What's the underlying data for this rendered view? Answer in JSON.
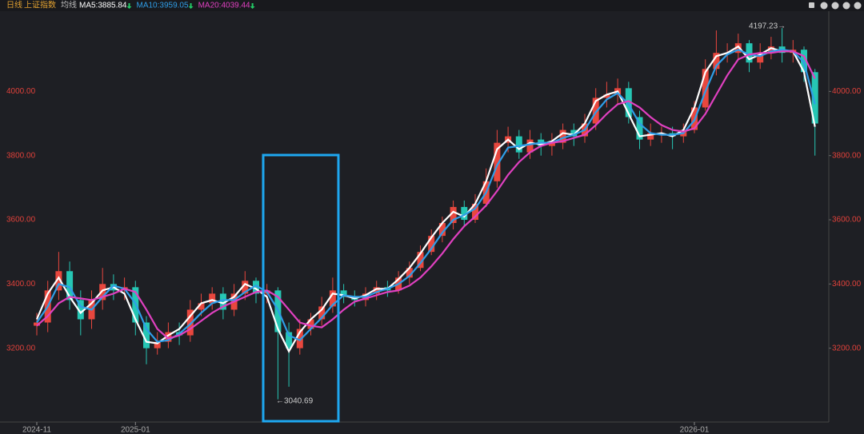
{
  "chart_data": {
    "type": "candlestick",
    "title": "日线",
    "subtitle": "上证指数",
    "ma_label": "均线",
    "up_color": "#e8473e",
    "down_color": "#26c6b4",
    "categories": [
      "2024-11",
      null,
      null,
      null,
      null,
      null,
      null,
      null,
      null,
      "2025-01",
      null,
      null,
      null,
      null,
      null,
      null,
      null,
      null,
      null,
      null,
      null,
      null,
      null,
      null,
      null,
      null,
      null,
      null,
      null,
      null,
      null,
      null,
      null,
      null,
      null,
      null,
      null,
      null,
      null,
      null,
      null,
      null,
      null,
      null,
      null,
      null,
      null,
      null,
      null,
      null,
      null,
      null,
      null,
      null,
      null,
      null,
      null,
      null,
      null,
      null,
      "2026-01",
      null,
      null,
      null,
      null,
      null,
      null,
      null,
      null,
      null,
      null,
      null
    ],
    "open": [
      3270,
      3280,
      3380,
      3440,
      3350,
      3290,
      3350,
      3400,
      3380,
      3390,
      3280,
      3200,
      3220,
      3250,
      3240,
      3320,
      3340,
      3370,
      3320,
      3370,
      3410,
      3370,
      3380,
      3250,
      3200,
      3260,
      3290,
      3330,
      3380,
      3360,
      3350,
      3370,
      3390,
      3380,
      3420,
      3450,
      3500,
      3550,
      3590,
      3640,
      3600,
      3650,
      3720,
      3840,
      3860,
      3810,
      3850,
      3830,
      3840,
      3880,
      3860,
      3900,
      3980,
      3990,
      4010,
      3920,
      3850,
      3870,
      3870,
      3860,
      3880,
      3950,
      4070,
      4120,
      4120,
      4150,
      4090,
      4120,
      4140,
      4120,
      4130,
      4060
    ],
    "high": [
      3310,
      3410,
      3500,
      3470,
      3380,
      3380,
      3450,
      3430,
      3420,
      3410,
      3300,
      3250,
      3280,
      3280,
      3350,
      3370,
      3390,
      3390,
      3400,
      3440,
      3420,
      3400,
      3390,
      3280,
      3290,
      3310,
      3360,
      3420,
      3400,
      3380,
      3390,
      3410,
      3410,
      3440,
      3470,
      3520,
      3570,
      3610,
      3660,
      3660,
      3680,
      3760,
      3880,
      3890,
      3880,
      3880,
      3870,
      3870,
      3900,
      3900,
      3930,
      4010,
      4030,
      4040,
      4030,
      3940,
      3900,
      3890,
      3890,
      3900,
      3970,
      4100,
      4190,
      4150,
      4180,
      4160,
      4150,
      4170,
      4197.23,
      4160,
      4140,
      4070
    ],
    "low": [
      3240,
      3250,
      3350,
      3320,
      3240,
      3260,
      3320,
      3350,
      3350,
      3240,
      3150,
      3180,
      3200,
      3210,
      3220,
      3300,
      3320,
      3290,
      3300,
      3350,
      3340,
      3340,
      3040.69,
      3080,
      3180,
      3240,
      3270,
      3310,
      3340,
      3330,
      3330,
      3350,
      3360,
      3370,
      3400,
      3440,
      3490,
      3530,
      3570,
      3580,
      3590,
      3640,
      3700,
      3810,
      3790,
      3790,
      3800,
      3800,
      3820,
      3830,
      3840,
      3880,
      3950,
      3960,
      3900,
      3820,
      3830,
      3840,
      3820,
      3840,
      3870,
      3940,
      4050,
      4090,
      4100,
      4060,
      4070,
      4100,
      4090,
      4090,
      4030,
      3800
    ],
    "close": [
      3280,
      3380,
      3440,
      3350,
      3290,
      3350,
      3400,
      3380,
      3390,
      3280,
      3200,
      3220,
      3250,
      3240,
      3320,
      3340,
      3370,
      3320,
      3370,
      3410,
      3370,
      3380,
      3250,
      3200,
      3260,
      3290,
      3330,
      3380,
      3360,
      3350,
      3370,
      3390,
      3380,
      3420,
      3450,
      3500,
      3550,
      3590,
      3640,
      3600,
      3650,
      3720,
      3840,
      3860,
      3810,
      3850,
      3830,
      3840,
      3880,
      3860,
      3900,
      3980,
      3990,
      4010,
      3920,
      3850,
      3870,
      3870,
      3860,
      3880,
      3950,
      4070,
      4120,
      4120,
      4150,
      4090,
      4120,
      4140,
      4120,
      4130,
      4060,
      3900
    ],
    "series": [
      {
        "name": "MA5:3885.84",
        "color": "#ffffff",
        "values": [
          3290,
          3370,
          3420,
          3360,
          3310,
          3340,
          3380,
          3390,
          3370,
          3290,
          3220,
          3215,
          3240,
          3260,
          3300,
          3340,
          3350,
          3340,
          3360,
          3400,
          3385,
          3360,
          3260,
          3190,
          3250,
          3290,
          3320,
          3370,
          3365,
          3355,
          3365,
          3385,
          3385,
          3415,
          3450,
          3495,
          3545,
          3590,
          3625,
          3610,
          3650,
          3720,
          3820,
          3850,
          3820,
          3840,
          3835,
          3845,
          3870,
          3865,
          3900,
          3970,
          3990,
          4000,
          3930,
          3860,
          3865,
          3870,
          3860,
          3880,
          3950,
          4060,
          4110,
          4120,
          4140,
          4100,
          4115,
          4135,
          4125,
          4125,
          4060,
          3890
        ]
      },
      {
        "name": "MA10:3959.05",
        "color": "#2f9ee8",
        "values": [
          3280,
          3330,
          3400,
          3390,
          3330,
          3320,
          3360,
          3395,
          3385,
          3340,
          3260,
          3220,
          3225,
          3245,
          3275,
          3310,
          3340,
          3350,
          3350,
          3375,
          3395,
          3375,
          3320,
          3240,
          3225,
          3260,
          3295,
          3335,
          3365,
          3360,
          3360,
          3375,
          3385,
          3400,
          3425,
          3465,
          3510,
          3560,
          3600,
          3615,
          3635,
          3685,
          3770,
          3825,
          3830,
          3835,
          3840,
          3840,
          3855,
          3865,
          3880,
          3935,
          3975,
          3995,
          3960,
          3900,
          3870,
          3865,
          3865,
          3870,
          3910,
          4000,
          4080,
          4115,
          4130,
          4115,
          4110,
          4125,
          4130,
          4125,
          4090,
          3960
        ]
      },
      {
        "name": "MA20:4039.44",
        "color": "#e040c0",
        "values": [
          3270,
          3300,
          3340,
          3360,
          3355,
          3350,
          3360,
          3370,
          3385,
          3375,
          3320,
          3260,
          3230,
          3240,
          3260,
          3285,
          3310,
          3330,
          3345,
          3360,
          3375,
          3380,
          3360,
          3320,
          3280,
          3270,
          3265,
          3290,
          3320,
          3345,
          3355,
          3365,
          3375,
          3380,
          3395,
          3420,
          3455,
          3495,
          3540,
          3580,
          3610,
          3645,
          3690,
          3740,
          3780,
          3810,
          3830,
          3840,
          3845,
          3855,
          3865,
          3895,
          3930,
          3960,
          3970,
          3950,
          3920,
          3895,
          3880,
          3875,
          3885,
          3930,
          3990,
          4050,
          4100,
          4115,
          4120,
          4120,
          4125,
          4125,
          4110,
          4040
        ]
      }
    ],
    "annotations": [
      "4197.23→",
      "←3040.69"
    ],
    "ylim": [
      2970,
      4240
    ],
    "yticks": [
      {
        "value": 3200,
        "label": "3200.00"
      },
      {
        "value": 3400,
        "label": "3400.00"
      },
      {
        "value": 3600,
        "label": "3600.00"
      },
      {
        "value": 3800,
        "label": "3800.00"
      },
      {
        "value": 4000,
        "label": "4000.00"
      }
    ]
  }
}
